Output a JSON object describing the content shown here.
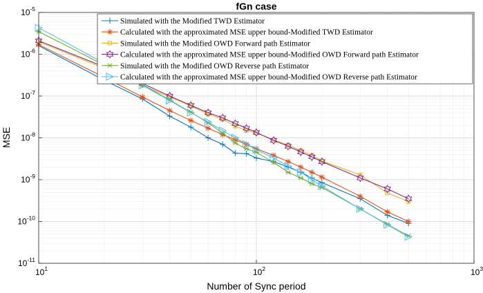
{
  "chart_data": {
    "type": "line",
    "title": "fGn case",
    "xlabel": "Number of Sync period",
    "ylabel": "MSE",
    "xscale": "log",
    "yscale": "log",
    "xlim": [
      10,
      1000
    ],
    "ylim": [
      1e-11,
      1e-05
    ],
    "grid": true,
    "legend_position": "top-right",
    "x_ticks": [
      {
        "value": 10,
        "base": "10",
        "exp": "1"
      },
      {
        "value": 100,
        "base": "10",
        "exp": "2"
      },
      {
        "value": 1000,
        "base": "10",
        "exp": "3"
      }
    ],
    "y_ticks": [
      {
        "value": 1e-11,
        "base": "10",
        "exp": "-11"
      },
      {
        "value": 1e-10,
        "base": "10",
        "exp": "-10"
      },
      {
        "value": 1e-09,
        "base": "10",
        "exp": "-9"
      },
      {
        "value": 1e-08,
        "base": "10",
        "exp": "-8"
      },
      {
        "value": 1e-07,
        "base": "10",
        "exp": "-7"
      },
      {
        "value": 1e-06,
        "base": "10",
        "exp": "-6"
      },
      {
        "value": 1e-05,
        "base": "10",
        "exp": "-5"
      }
    ],
    "x": [
      10,
      20,
      30,
      40,
      50,
      60,
      70,
      80,
      90,
      100,
      120,
      140,
      160,
      180,
      200,
      300,
      400,
      500
    ],
    "series": [
      {
        "name": "Simulated with the Modified TWD Estimator",
        "color": "#0072BD",
        "marker": "plus",
        "values": [
          1.6e-06,
          2.4e-07,
          8.5e-08,
          3.3e-08,
          1.8e-08,
          1e-08,
          7e-09,
          4.3e-09,
          4.2e-09,
          3.3e-09,
          2.7e-09,
          2e-09,
          1.5e-09,
          1.1e-09,
          8.5e-10,
          3.5e-10,
          1.4e-10,
          9e-11
        ]
      },
      {
        "name": "Calculated with the approximated MSE upper bound-Modified TWD Estimator",
        "color": "#D95319",
        "marker": "asterisk",
        "values": [
          1.7e-06,
          2.8e-07,
          9.5e-08,
          4.5e-08,
          2.6e-08,
          1.7e-08,
          1.2e-08,
          9e-09,
          7e-09,
          5.5e-09,
          3.8e-09,
          2.7e-09,
          2e-09,
          1.5e-09,
          1.15e-09,
          4e-10,
          1.7e-10,
          1e-10
        ]
      },
      {
        "name": "Simulated with the Modified OWD Forward path Estimator",
        "color": "#EDB120",
        "marker": "square",
        "values": [
          2e-06,
          4.6e-07,
          1.8e-07,
          9.5e-08,
          5.8e-08,
          3.7e-08,
          2.8e-08,
          1.9e-08,
          1.5e-08,
          1.3e-08,
          9e-09,
          6.7e-09,
          5e-09,
          3.8e-09,
          2.8e-09,
          1.3e-09,
          4.8e-10,
          3e-10
        ]
      },
      {
        "name": "Calculated with the approximated MSE upper bound-Modified OWD Forward path Estimator",
        "color": "#7E2F8E",
        "marker": "hexagram",
        "values": [
          2.1e-06,
          5e-07,
          2e-07,
          1e-07,
          6e-08,
          4e-08,
          3e-08,
          2.2e-08,
          1.7e-08,
          1.35e-08,
          8.7e-09,
          6.3e-09,
          4.6e-09,
          3.5e-09,
          2.7e-09,
          1.1e-09,
          6e-10,
          3.5e-10
        ]
      },
      {
        "name": "Simulated with the Modified OWD Reverse path Estimator",
        "color": "#77AC30",
        "marker": "star",
        "values": [
          3.5e-06,
          5.5e-07,
          1.9e-07,
          8e-08,
          4.1e-08,
          2.3e-08,
          1.3e-08,
          7.5e-09,
          5.5e-09,
          4.5e-09,
          2.6e-09,
          1.5e-09,
          1.1e-09,
          8e-10,
          6.5e-10,
          2e-10,
          8.5e-11,
          4.5e-11
        ]
      },
      {
        "name": "Calculated with the approximated MSE upper bound-Modified OWD Reverse path Estimator",
        "color": "#4DBEEE",
        "marker": "triangle-right",
        "values": [
          4.3e-06,
          6.1e-07,
          1.8e-07,
          7.8e-08,
          4e-08,
          2.4e-08,
          1.5e-08,
          1e-08,
          7e-09,
          5.2e-09,
          3.3e-09,
          2.1e-09,
          1.5e-09,
          1e-09,
          7e-10,
          2e-10,
          8.3e-11,
          4.3e-11
        ]
      }
    ]
  }
}
